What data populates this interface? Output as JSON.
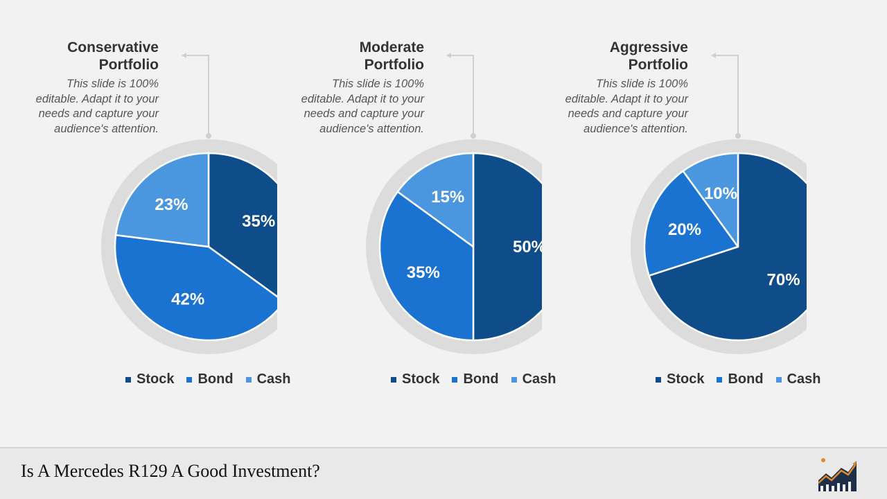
{
  "footer": {
    "title": "Is A Mercedes R129 A Good Investment?",
    "logo_icon": "growth-chart-logo-icon"
  },
  "colors": {
    "stock": "#0f4c8a",
    "bond": "#1a73d0",
    "cash": "#4a97e0",
    "ring": "#dcdcdc",
    "connector": "#cfcfcf"
  },
  "chart_data": [
    {
      "type": "pie",
      "title": "Conservative Portfolio",
      "title_lines": [
        "Conservative",
        "Portfolio"
      ],
      "description_lines": [
        "This slide is 100%",
        "editable. Adapt it to your",
        "needs and capture your",
        "audience's attention."
      ],
      "categories": [
        "Stock",
        "Bond",
        "Cash"
      ],
      "values": [
        35,
        42,
        23
      ],
      "labels": [
        "35%",
        "42%",
        "23%"
      ],
      "legend": "bottom"
    },
    {
      "type": "pie",
      "title": "Moderate Portfolio",
      "title_lines": [
        "Moderate",
        "Portfolio"
      ],
      "description_lines": [
        "This slide is 100%",
        "editable. Adapt it to your",
        "needs and capture your",
        "audience's attention."
      ],
      "categories": [
        "Stock",
        "Bond",
        "Cash"
      ],
      "values": [
        50,
        35,
        15
      ],
      "labels": [
        "50%",
        "35%",
        "15%"
      ],
      "legend": "bottom"
    },
    {
      "type": "pie",
      "title": "Aggressive Portfolio",
      "title_lines": [
        "Aggressive",
        "Portfolio"
      ],
      "description_lines": [
        "This slide is 100%",
        "editable. Adapt it to your",
        "needs and capture your",
        "audience's attention."
      ],
      "categories": [
        "Stock",
        "Bond",
        "Cash"
      ],
      "values": [
        70,
        20,
        10
      ],
      "labels": [
        "70%",
        "20%",
        "10%"
      ],
      "legend": "bottom"
    }
  ]
}
